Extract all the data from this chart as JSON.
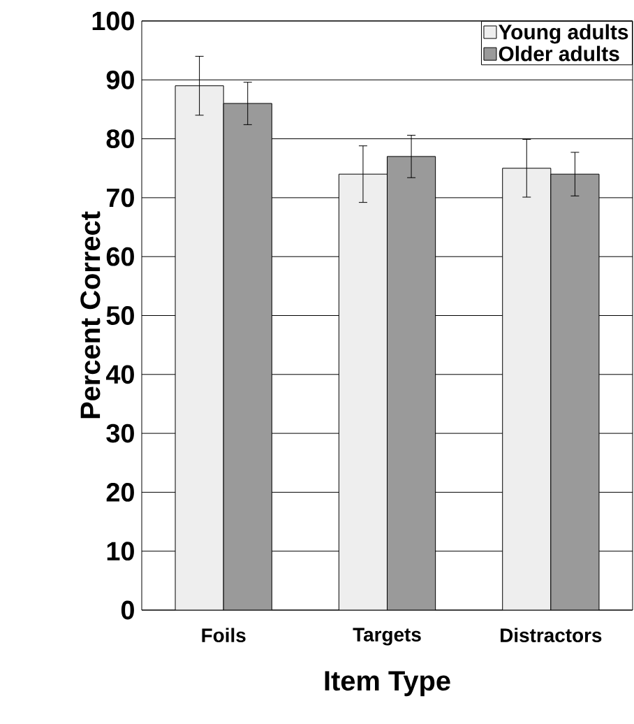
{
  "chart_data": {
    "type": "bar",
    "xlabel": "Item Type",
    "ylabel": "Percent Correct",
    "categories": [
      "Foils",
      "Targets",
      "Distractors"
    ],
    "series": [
      {
        "name": "Young adults",
        "color": "#eeeeee",
        "values": [
          89,
          74,
          75
        ],
        "errors": [
          5,
          4.8,
          4.9
        ]
      },
      {
        "name": "Older adults",
        "color": "#9a9a9a",
        "values": [
          86,
          77,
          74
        ],
        "errors": [
          3.6,
          3.6,
          3.7
        ]
      }
    ],
    "ylim": [
      0,
      100
    ],
    "yticks": [
      0,
      10,
      20,
      30,
      40,
      50,
      60,
      70,
      80,
      90,
      100
    ],
    "grid": "y",
    "legend": "top right"
  }
}
